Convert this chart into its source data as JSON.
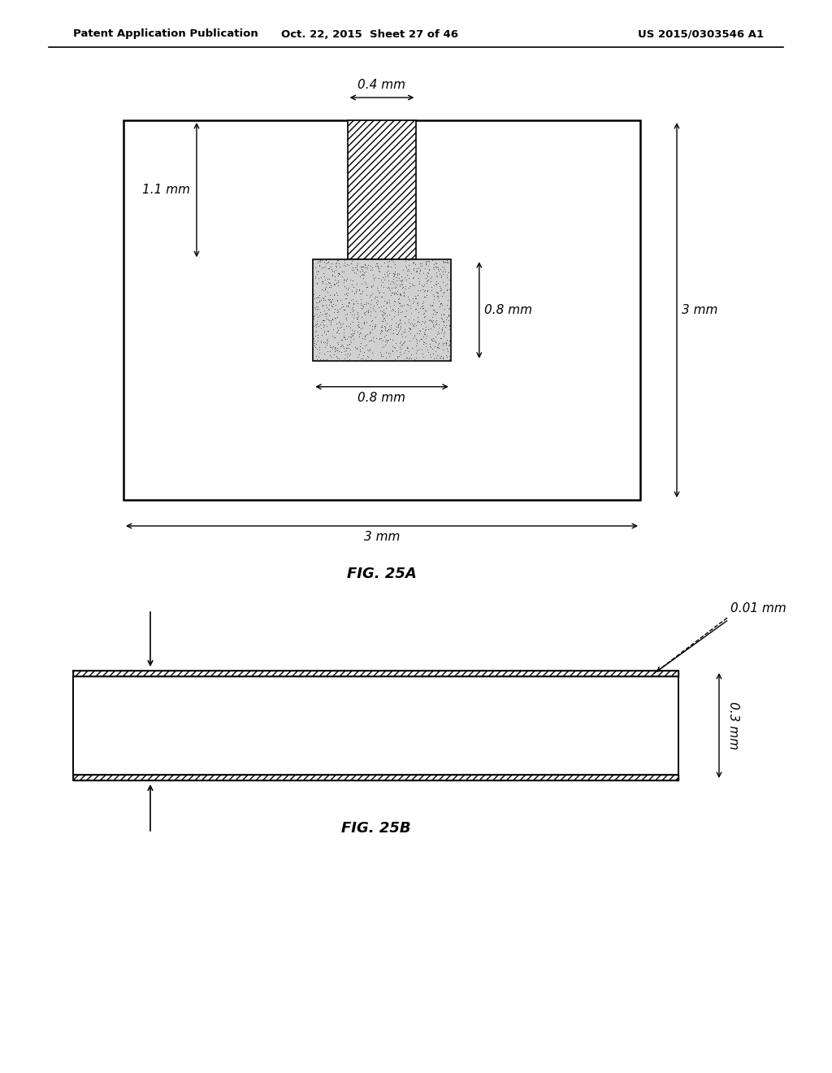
{
  "header_left": "Patent Application Publication",
  "header_mid": "Oct. 22, 2015  Sheet 27 of 46",
  "header_right": "US 2015/0303546 A1",
  "fig25a_caption": "FIG. 25A",
  "fig25b_caption": "FIG. 25B",
  "background_color": "#ffffff",
  "line_color": "#000000",
  "fig25a": {
    "dim_04_label": "0.4 mm",
    "dim_11_label": "1.1 mm",
    "dim_08h_label": "0.8 mm",
    "dim_08w_label": "0.8 mm",
    "dim_3h_label": "3 mm",
    "dim_3w_label": "3 mm"
  },
  "fig25b": {
    "dim_001_label": "0.01 mm",
    "dim_03_label": "0.3 mm"
  }
}
